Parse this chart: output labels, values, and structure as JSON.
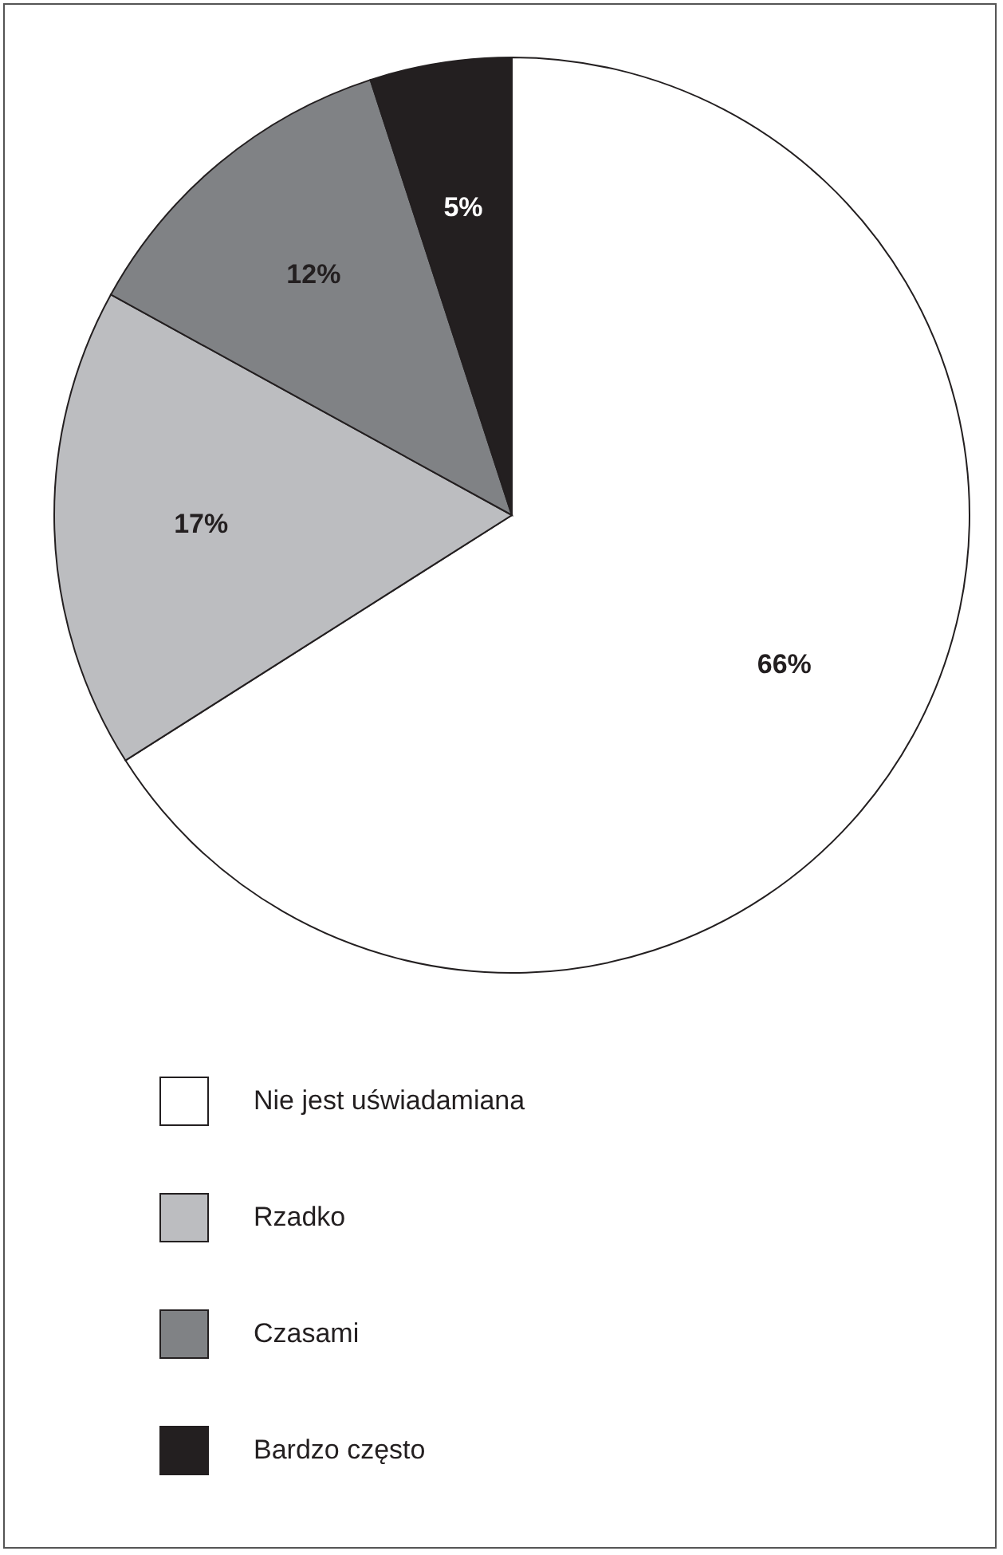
{
  "chart_data": {
    "type": "pie",
    "categories": [
      "Nie jest uświadamiana",
      "Rzadko",
      "Czasami",
      "Bardzo często"
    ],
    "values": [
      66,
      17,
      12,
      5
    ],
    "colors": [
      "#ffffff",
      "#bcbdc0",
      "#808285",
      "#231f20"
    ],
    "value_labels": [
      "66%",
      "17%",
      "12%",
      "5%"
    ],
    "legend": "bottom"
  }
}
